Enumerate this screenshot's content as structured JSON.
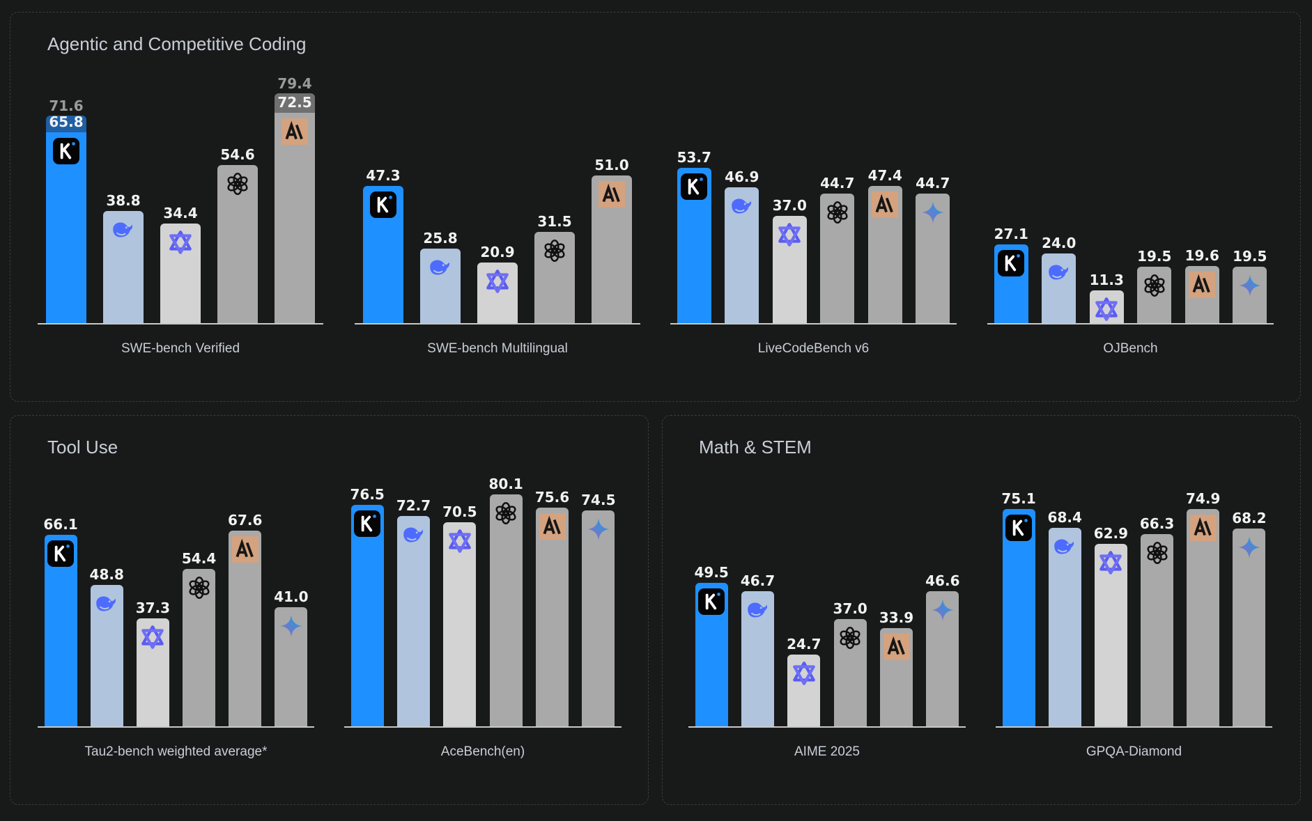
{
  "panels": [
    {
      "title": "Agentic and Competitive Coding"
    },
    {
      "title": "Tool Use"
    },
    {
      "title": "Math & STEM"
    }
  ],
  "colors": {
    "background": "#181a1a",
    "kimi": "#1e90ff",
    "kimi_extra": "#1f5fa3",
    "deepseek": "#b0c4de",
    "qwen": "#d3d3d3",
    "other": "#a9a9a9",
    "other_extra": "#707070"
  },
  "chart_data": [
    {
      "type": "bar",
      "panel": 0,
      "xlabel": "SWE-bench Verified",
      "ylim": [
        0,
        100
      ],
      "grid": false,
      "icons": [
        "kimi-icon",
        "deepseek-icon",
        "qwen-icon",
        "openai-icon",
        "anthropic-icon"
      ],
      "values": [
        65.8,
        38.8,
        34.4,
        54.6,
        72.5
      ],
      "stacked_top": [
        71.6,
        null,
        null,
        null,
        79.4
      ]
    },
    {
      "type": "bar",
      "panel": 0,
      "xlabel": "SWE-bench Multilingual",
      "ylim": [
        0,
        100
      ],
      "grid": false,
      "icons": [
        "kimi-icon",
        "deepseek-icon",
        "qwen-icon",
        "openai-icon",
        "anthropic-icon"
      ],
      "values": [
        47.3,
        25.8,
        20.9,
        31.5,
        51.0
      ],
      "stacked_top": [
        null,
        null,
        null,
        null,
        null
      ]
    },
    {
      "type": "bar",
      "panel": 0,
      "xlabel": "LiveCodeBench v6",
      "ylim": [
        0,
        100
      ],
      "grid": false,
      "icons": [
        "kimi-icon",
        "deepseek-icon",
        "qwen-icon",
        "openai-icon",
        "anthropic-icon",
        "gemini-icon"
      ],
      "values": [
        53.7,
        46.9,
        37.0,
        44.7,
        47.4,
        44.7
      ],
      "stacked_top": [
        null,
        null,
        null,
        null,
        null,
        null
      ]
    },
    {
      "type": "bar",
      "panel": 0,
      "xlabel": "OJBench",
      "ylim": [
        0,
        100
      ],
      "grid": false,
      "icons": [
        "kimi-icon",
        "deepseek-icon",
        "qwen-icon",
        "openai-icon",
        "anthropic-icon",
        "gemini-icon"
      ],
      "values": [
        27.1,
        24.0,
        11.3,
        19.5,
        19.6,
        19.5
      ],
      "stacked_top": [
        null,
        null,
        null,
        null,
        null,
        null
      ]
    },
    {
      "type": "bar",
      "panel": 1,
      "xlabel": "Tau2-bench weighted average*",
      "ylim": [
        0,
        100
      ],
      "grid": false,
      "icons": [
        "kimi-icon",
        "deepseek-icon",
        "qwen-icon",
        "openai-icon",
        "anthropic-icon",
        "gemini-icon"
      ],
      "values": [
        66.1,
        48.8,
        37.3,
        54.4,
        67.6,
        41.0
      ],
      "stacked_top": [
        null,
        null,
        null,
        null,
        null,
        null
      ]
    },
    {
      "type": "bar",
      "panel": 1,
      "xlabel": "AceBench(en)",
      "ylim": [
        0,
        100
      ],
      "grid": false,
      "icons": [
        "kimi-icon",
        "deepseek-icon",
        "qwen-icon",
        "openai-icon",
        "anthropic-icon",
        "gemini-icon"
      ],
      "values": [
        76.5,
        72.7,
        70.5,
        80.1,
        75.6,
        74.5
      ],
      "stacked_top": [
        null,
        null,
        null,
        null,
        null,
        null
      ]
    },
    {
      "type": "bar",
      "panel": 2,
      "xlabel": "AIME 2025",
      "ylim": [
        0,
        100
      ],
      "grid": false,
      "icons": [
        "kimi-icon",
        "deepseek-icon",
        "qwen-icon",
        "openai-icon",
        "anthropic-icon",
        "gemini-icon"
      ],
      "values": [
        49.5,
        46.7,
        24.7,
        37.0,
        33.9,
        46.6
      ],
      "stacked_top": [
        null,
        null,
        null,
        null,
        null,
        null
      ]
    },
    {
      "type": "bar",
      "panel": 2,
      "xlabel": "GPQA-Diamond",
      "ylim": [
        0,
        100
      ],
      "grid": false,
      "icons": [
        "kimi-icon",
        "deepseek-icon",
        "qwen-icon",
        "openai-icon",
        "anthropic-icon",
        "gemini-icon"
      ],
      "values": [
        75.1,
        68.4,
        62.9,
        66.3,
        74.9,
        68.2
      ],
      "stacked_top": [
        null,
        null,
        null,
        null,
        null,
        null
      ]
    }
  ]
}
